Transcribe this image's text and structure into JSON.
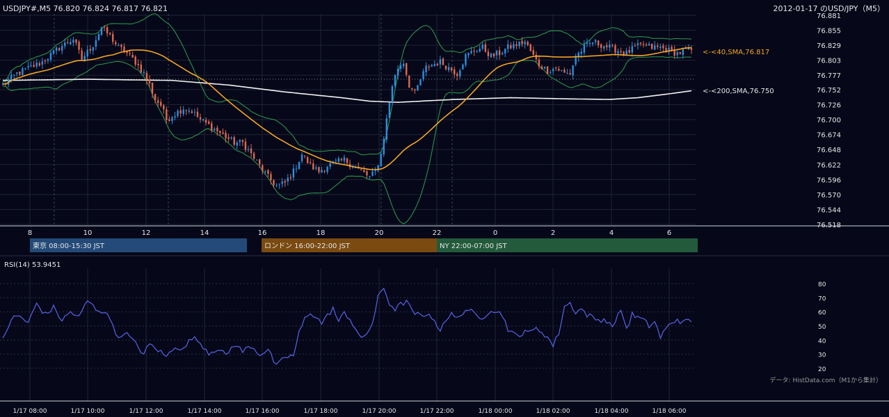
{
  "header": {
    "left_title": "USDJPY#,M5 76.820 76.824 76.817 76.821",
    "right_title": "2012-01-17 のUSD/JPY（M5）"
  },
  "colors": {
    "background": "#060819",
    "bull": "#2d8fe0",
    "bear": "#e0684f",
    "sma40": "#f5a623",
    "sma200": "#f2f2f2",
    "bollinger": "#2f9e4f",
    "rsi": "#5a63e8",
    "tokyo": "#234a78",
    "london": "#7a4a10",
    "ny": "#235a3c"
  },
  "chart_data": [
    {
      "type": "candlestick",
      "ylim": [
        76.518,
        76.881
      ],
      "y_ticks": [
        "76.881",
        "76.855",
        "76.829",
        "76.803",
        "76.777",
        "76.752",
        "76.726",
        "76.700",
        "76.674",
        "76.648",
        "76.622",
        "76.596",
        "76.570",
        "76.544",
        "76.518"
      ],
      "x_ticks": [
        "8",
        "10",
        "12",
        "14",
        "16",
        "18",
        "20",
        "22",
        "0",
        "2",
        "4",
        "6"
      ],
      "reference_price": 76.77,
      "price_path": [
        [
          0,
          76.76
        ],
        [
          5,
          76.78
        ],
        [
          14,
          76.8
        ],
        [
          20,
          76.825
        ],
        [
          25,
          76.84
        ],
        [
          28,
          76.805
        ],
        [
          32,
          76.83
        ],
        [
          35,
          76.86
        ],
        [
          38,
          76.845
        ],
        [
          41,
          76.825
        ],
        [
          43,
          76.82
        ],
        [
          47,
          76.8
        ],
        [
          50,
          76.78
        ],
        [
          52,
          76.76
        ],
        [
          54,
          76.735
        ],
        [
          56,
          76.725
        ],
        [
          58,
          76.7
        ],
        [
          61,
          76.71
        ],
        [
          64,
          76.72
        ],
        [
          67,
          76.715
        ],
        [
          70,
          76.7
        ],
        [
          73,
          76.69
        ],
        [
          76,
          76.68
        ],
        [
          79,
          76.67
        ],
        [
          82,
          76.66
        ],
        [
          85,
          76.66
        ],
        [
          88,
          76.64
        ],
        [
          91,
          76.62
        ],
        [
          94,
          76.6
        ],
        [
          97,
          76.585
        ],
        [
          100,
          76.59
        ],
        [
          103,
          76.61
        ],
        [
          106,
          76.64
        ],
        [
          109,
          76.62
        ],
        [
          112,
          76.61
        ],
        [
          115,
          76.62
        ],
        [
          118,
          76.625
        ],
        [
          121,
          76.63
        ],
        [
          124,
          76.62
        ],
        [
          127,
          76.61
        ],
        [
          130,
          76.6
        ],
        [
          132,
          76.61
        ],
        [
          134,
          76.64
        ],
        [
          136,
          76.7
        ],
        [
          138,
          76.76
        ],
        [
          140,
          76.79
        ],
        [
          142,
          76.8
        ],
        [
          144,
          76.76
        ],
        [
          146,
          76.745
        ],
        [
          148,
          76.77
        ],
        [
          150,
          76.79
        ],
        [
          152,
          76.795
        ],
        [
          155,
          76.8
        ],
        [
          158,
          76.79
        ],
        [
          161,
          76.78
        ],
        [
          164,
          76.81
        ],
        [
          167,
          76.82
        ],
        [
          170,
          76.825
        ],
        [
          173,
          76.81
        ],
        [
          176,
          76.815
        ],
        [
          179,
          76.825
        ],
        [
          182,
          76.83
        ],
        [
          185,
          76.835
        ],
        [
          188,
          76.81
        ],
        [
          190,
          76.795
        ],
        [
          193,
          76.785
        ],
        [
          196,
          76.79
        ],
        [
          199,
          76.78
        ],
        [
          201,
          76.78
        ],
        [
          203,
          76.81
        ],
        [
          206,
          76.825
        ],
        [
          209,
          76.835
        ],
        [
          212,
          76.83
        ],
        [
          215,
          76.825
        ],
        [
          218,
          76.82
        ],
        [
          221,
          76.815
        ],
        [
          224,
          76.825
        ],
        [
          227,
          76.83
        ],
        [
          230,
          76.825
        ],
        [
          233,
          76.825
        ],
        [
          236,
          76.82
        ],
        [
          239,
          76.815
        ],
        [
          242,
          76.82
        ],
        [
          244,
          76.821
        ]
      ],
      "sma40_label": "<-<40,SMA,76.817",
      "sma200_label": "<-<200,SMA,76.750",
      "sma200_path": [
        [
          0,
          76.768
        ],
        [
          30,
          76.77
        ],
        [
          60,
          76.768
        ],
        [
          80,
          76.76
        ],
        [
          100,
          76.748
        ],
        [
          120,
          76.738
        ],
        [
          130,
          76.732
        ],
        [
          140,
          76.73
        ],
        [
          160,
          76.735
        ],
        [
          180,
          76.738
        ],
        [
          200,
          76.736
        ],
        [
          215,
          76.735
        ],
        [
          225,
          76.738
        ],
        [
          235,
          76.744
        ],
        [
          244,
          76.75
        ]
      ]
    },
    {
      "type": "line",
      "title": "RSI(14) 53.9451",
      "ylim": [
        15,
        85
      ],
      "y_ticks": [
        "80",
        "70",
        "60",
        "50",
        "40",
        "30",
        "20"
      ],
      "x_ticks": [
        "1/17 08:00",
        "1/17 10:00",
        "1/17 12:00",
        "1/17 14:00",
        "1/17 16:00",
        "1/17 18:00",
        "1/17 20:00",
        "1/17 22:00",
        "1/18 00:00",
        "1/18 02:00",
        "1/18 04:00",
        "1/18 06:00"
      ],
      "rsi_path": [
        [
          0,
          40
        ],
        [
          3,
          55
        ],
        [
          6,
          57
        ],
        [
          9,
          52
        ],
        [
          12,
          66
        ],
        [
          15,
          58
        ],
        [
          18,
          63
        ],
        [
          21,
          54
        ],
        [
          24,
          60
        ],
        [
          27,
          56
        ],
        [
          30,
          68
        ],
        [
          33,
          62
        ],
        [
          36,
          60
        ],
        [
          39,
          52
        ],
        [
          41,
          40
        ],
        [
          43,
          46
        ],
        [
          45,
          42
        ],
        [
          48,
          35
        ],
        [
          50,
          30
        ],
        [
          52,
          37
        ],
        [
          55,
          33
        ],
        [
          58,
          28
        ],
        [
          61,
          36
        ],
        [
          64,
          33
        ],
        [
          67,
          42
        ],
        [
          70,
          38
        ],
        [
          73,
          31
        ],
        [
          76,
          34
        ],
        [
          79,
          29
        ],
        [
          82,
          37
        ],
        [
          85,
          32
        ],
        [
          88,
          36
        ],
        [
          91,
          30
        ],
        [
          94,
          33
        ],
        [
          97,
          21
        ],
        [
          100,
          28
        ],
        [
          103,
          29
        ],
        [
          105,
          45
        ],
        [
          107,
          55
        ],
        [
          109,
          60
        ],
        [
          111,
          56
        ],
        [
          113,
          52
        ],
        [
          115,
          57
        ],
        [
          117,
          63
        ],
        [
          119,
          52
        ],
        [
          121,
          60
        ],
        [
          123,
          55
        ],
        [
          125,
          48
        ],
        [
          127,
          40
        ],
        [
          129,
          45
        ],
        [
          131,
          52
        ],
        [
          133,
          70
        ],
        [
          135,
          77
        ],
        [
          137,
          66
        ],
        [
          139,
          62
        ],
        [
          141,
          65
        ],
        [
          143,
          68
        ],
        [
          145,
          60
        ],
        [
          147,
          58
        ],
        [
          149,
          56
        ],
        [
          151,
          60
        ],
        [
          153,
          52
        ],
        [
          155,
          48
        ],
        [
          157,
          55
        ],
        [
          159,
          58
        ],
        [
          161,
          55
        ],
        [
          163,
          60
        ],
        [
          165,
          62
        ],
        [
          167,
          58
        ],
        [
          169,
          55
        ],
        [
          171,
          58
        ],
        [
          173,
          62
        ],
        [
          175,
          60
        ],
        [
          177,
          58
        ],
        [
          179,
          48
        ],
        [
          181,
          44
        ],
        [
          183,
          42
        ],
        [
          185,
          48
        ],
        [
          187,
          45
        ],
        [
          189,
          48
        ],
        [
          191,
          46
        ],
        [
          193,
          42
        ],
        [
          195,
          36
        ],
        [
          197,
          45
        ],
        [
          199,
          64
        ],
        [
          201,
          66
        ],
        [
          203,
          60
        ],
        [
          205,
          62
        ],
        [
          207,
          58
        ],
        [
          209,
          56
        ],
        [
          211,
          54
        ],
        [
          213,
          55
        ],
        [
          215,
          51
        ],
        [
          217,
          52
        ],
        [
          219,
          62
        ],
        [
          221,
          48
        ],
        [
          223,
          58
        ],
        [
          225,
          56
        ],
        [
          227,
          54
        ],
        [
          229,
          50
        ],
        [
          231,
          53
        ],
        [
          233,
          42
        ],
        [
          235,
          48
        ],
        [
          237,
          52
        ],
        [
          239,
          55
        ],
        [
          241,
          52
        ],
        [
          243,
          54
        ]
      ]
    }
  ],
  "sessions": [
    {
      "label": "東京 08:00-15:30 JST",
      "key": "tokyo"
    },
    {
      "label": "ロンドン 16:00-22:00 JST",
      "key": "london"
    },
    {
      "label": "NY 22:00-07:00 JST",
      "key": "ny"
    }
  ],
  "footer": {
    "source": "データ: HistData.com（M1から集計）"
  }
}
